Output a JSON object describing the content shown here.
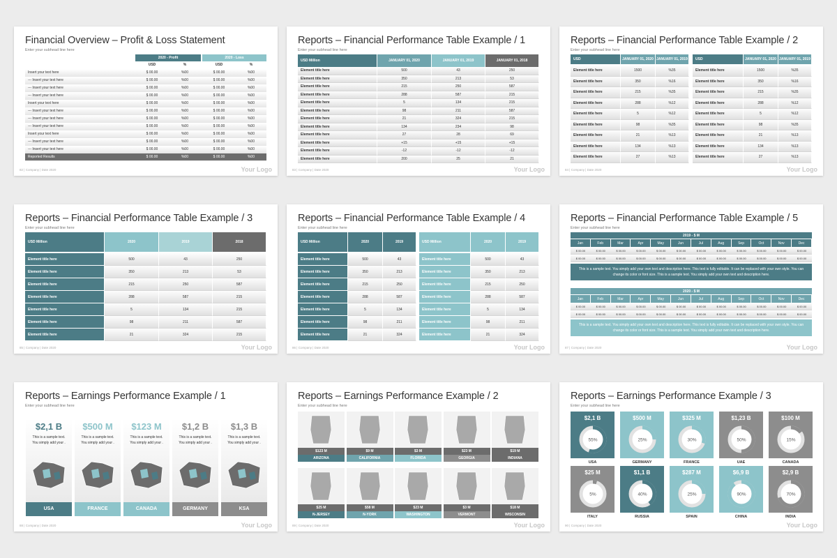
{
  "common": {
    "subhead": "Enter your subhead line here",
    "footer": "| Company  | Date 2020",
    "logo": "Your Logo"
  },
  "colors": {
    "teal_dark": "#4c7c86",
    "teal_mid": "#6fa4ad",
    "teal_light": "#8dc4ca",
    "teal_pale": "#a9d3d6",
    "gray_dark": "#6c6c6c",
    "gray_mid": "#8d8d8d"
  },
  "slide1": {
    "title": "Financial Overview – Profit & Loss Statement",
    "page": "82",
    "profit_header": "2020 - Profit",
    "loss_header": "2020 - Loss",
    "col_usd": "USD",
    "col_pct": "%",
    "rows": [
      {
        "label": "Insert your text here",
        "usd": "$ 00.00",
        "pct": "%00"
      },
      {
        "label": "--- Insert your text here",
        "usd": "$ 00.00",
        "pct": "%00"
      },
      {
        "label": "--- Insert your text here",
        "usd": "$ 00.00",
        "pct": "%00"
      },
      {
        "label": "--- Insert your text here",
        "usd": "$ 00.00",
        "pct": "%00"
      },
      {
        "label": "Insert your text here",
        "usd": "$ 00.00",
        "pct": "%00"
      },
      {
        "label": "--- Insert your text here",
        "usd": "$ 00.00",
        "pct": "%00"
      },
      {
        "label": "--- Insert your text here",
        "usd": "$ 00.00",
        "pct": "%00"
      },
      {
        "label": "--- Insert your text here",
        "usd": "$ 00.00",
        "pct": "%00"
      },
      {
        "label": "Insert your text here",
        "usd": "$ 00.00",
        "pct": "%00"
      },
      {
        "label": "--- Insert your text here",
        "usd": "$ 00.00",
        "pct": "%00"
      },
      {
        "label": "--- Insert your text here",
        "usd": "$ 00.00",
        "pct": "%00"
      }
    ],
    "total": {
      "label": "Reported Results",
      "usd": "$ 00.00",
      "pct": "%00"
    }
  },
  "slide2": {
    "title": "Reports – Financial Performance Table Example / 1",
    "page": "83",
    "headers": [
      "USD Million",
      "JANUARY 01, 2020",
      "JANUARY 01, 2019",
      "JANUARY 01, 2018"
    ],
    "rows": [
      [
        "Element title here",
        "500",
        "43",
        "250"
      ],
      [
        "Element title here",
        "350",
        "213",
        "53"
      ],
      [
        "Element title here",
        "215",
        "250",
        "587"
      ],
      [
        "Element title here",
        "288",
        "587",
        "215"
      ],
      [
        "Element title here",
        "5",
        "134",
        "215"
      ],
      [
        "Element title here",
        "98",
        "211",
        "587"
      ],
      [
        "Element title here",
        "21",
        "324",
        "215"
      ],
      [
        "Element title here",
        "134",
        "234",
        "98"
      ],
      [
        "Element title here",
        "27",
        "28",
        "69"
      ],
      [
        "Element title here",
        "+15",
        "+15",
        "+15"
      ],
      [
        "Element title here",
        "-12",
        "-12",
        "-12"
      ],
      [
        "Element title here",
        "200",
        "25",
        "21"
      ]
    ]
  },
  "slide3": {
    "title": "Reports – Financial Performance Table Example / 2",
    "page": "84",
    "headers": [
      "USD",
      "JANUARY 01, 2020",
      "JANUARY 01, 2019"
    ],
    "rows": [
      [
        "Element title here",
        "1500",
        "%35"
      ],
      [
        "Element title here",
        "350",
        "%16"
      ],
      [
        "Element title here",
        "215",
        "%35"
      ],
      [
        "Element title here",
        "288",
        "%12"
      ],
      [
        "Element title here",
        "5",
        "%12"
      ],
      [
        "Element title here",
        "98",
        "%35"
      ],
      [
        "Element title here",
        "21",
        "%13"
      ],
      [
        "Element title here",
        "134",
        "%13"
      ],
      [
        "Element title here",
        "27",
        "%13"
      ]
    ]
  },
  "slide4": {
    "title": "Reports – Financial Performance Table Example / 3",
    "page": "85",
    "headers": [
      "USD Million",
      "2020",
      "2019",
      "2018"
    ],
    "rows": [
      [
        "Element title here",
        "500",
        "43",
        "250"
      ],
      [
        "Element title here",
        "350",
        "213",
        "53"
      ],
      [
        "Element title here",
        "215",
        "250",
        "587"
      ],
      [
        "Element title here",
        "288",
        "587",
        "215"
      ],
      [
        "Element title here",
        "5",
        "134",
        "215"
      ],
      [
        "Element title here",
        "98",
        "211",
        "587"
      ],
      [
        "Element title here",
        "21",
        "324",
        "215"
      ]
    ]
  },
  "slide5": {
    "title": "Reports – Financial Performance Table Example / 4",
    "page": "86",
    "headers": [
      "USD Million",
      "2020",
      "2019"
    ],
    "rows": [
      [
        "Element title here",
        "500",
        "43"
      ],
      [
        "Element title here",
        "350",
        "213"
      ],
      [
        "Element title here",
        "215",
        "250"
      ],
      [
        "Element title here",
        "288",
        "587"
      ],
      [
        "Element title here",
        "5",
        "134"
      ],
      [
        "Element title here",
        "98",
        "211"
      ],
      [
        "Element title here",
        "21",
        "324"
      ]
    ]
  },
  "slide6": {
    "title": "Reports – Financial Performance Table Example / 5",
    "page": "87",
    "block1_header": "2019 - $ M",
    "block2_header": "2020 - $ M",
    "months": [
      "Jan",
      "Feb",
      "Mar",
      "Apr",
      "May",
      "Jun",
      "Jul",
      "Aug",
      "Sep",
      "Oct",
      "Nov",
      "Dec"
    ],
    "value": "$ 00.00",
    "note": "This is a sample text. You simply add your own text and description here. This text is fully editable. It can be replaced with your own style. You can change its color or font size. This is a sample text. You simply add your own text and description here."
  },
  "slide7": {
    "title": "Reports – Earnings Performance Example / 1",
    "page": "88",
    "card_text": "This is a sample text. You simply add your .",
    "cards": [
      {
        "value": "$2,1 B",
        "country": "USA"
      },
      {
        "value": "$500 M",
        "country": "FRANCE"
      },
      {
        "value": "$123 M",
        "country": "CANADA"
      },
      {
        "value": "$1,2 B",
        "country": "GERMANY"
      },
      {
        "value": "$1,3 B",
        "country": "KSA"
      }
    ]
  },
  "slide8": {
    "title": "Reports – Earnings Performance Example / 2",
    "page": "89",
    "tiles": [
      {
        "value": "$123 M",
        "state": "ARIZONA"
      },
      {
        "value": "$9 M",
        "state": "CALIFORNIA"
      },
      {
        "value": "$3 M",
        "state": "FLORIDA"
      },
      {
        "value": "$23 M",
        "state": "GEORGIA"
      },
      {
        "value": "$19 M",
        "state": "INDIANA"
      },
      {
        "value": "$25 M",
        "state": "N-JERSEY"
      },
      {
        "value": "$58 M",
        "state": "N-YORK"
      },
      {
        "value": "$23 M",
        "state": "WASHINGTON"
      },
      {
        "value": "$3 M",
        "state": "VERMONT"
      },
      {
        "value": "$18 M",
        "state": "WISCONSIN"
      }
    ]
  },
  "slide9": {
    "title": "Reports – Earnings Performance Example / 3",
    "page": "90",
    "tiles": [
      {
        "value": "$2,1 B",
        "pct": "55%",
        "fraction": 0.55,
        "country": "USA"
      },
      {
        "value": "$500 M",
        "pct": "25%",
        "fraction": 0.25,
        "country": "GERMANY"
      },
      {
        "value": "$325 M",
        "pct": "30%",
        "fraction": 0.3,
        "country": "FRANCE"
      },
      {
        "value": "$1,23 B",
        "pct": "50%",
        "fraction": 0.5,
        "country": "UAE"
      },
      {
        "value": "$100 M",
        "pct": "15%",
        "fraction": 0.15,
        "country": "CANADA"
      },
      {
        "value": "$25 M",
        "pct": "5%",
        "fraction": 0.05,
        "country": "ITALY"
      },
      {
        "value": "$1,1 B",
        "pct": "40%",
        "fraction": 0.4,
        "country": "RUSSIA"
      },
      {
        "value": "$287 M",
        "pct": "25%",
        "fraction": 0.25,
        "country": "SPAIN"
      },
      {
        "value": "$6,9 B",
        "pct": "90%",
        "fraction": 0.9,
        "country": "CHINA"
      },
      {
        "value": "$2,9 B",
        "pct": "70%",
        "fraction": 0.7,
        "country": "INDIA"
      }
    ]
  }
}
